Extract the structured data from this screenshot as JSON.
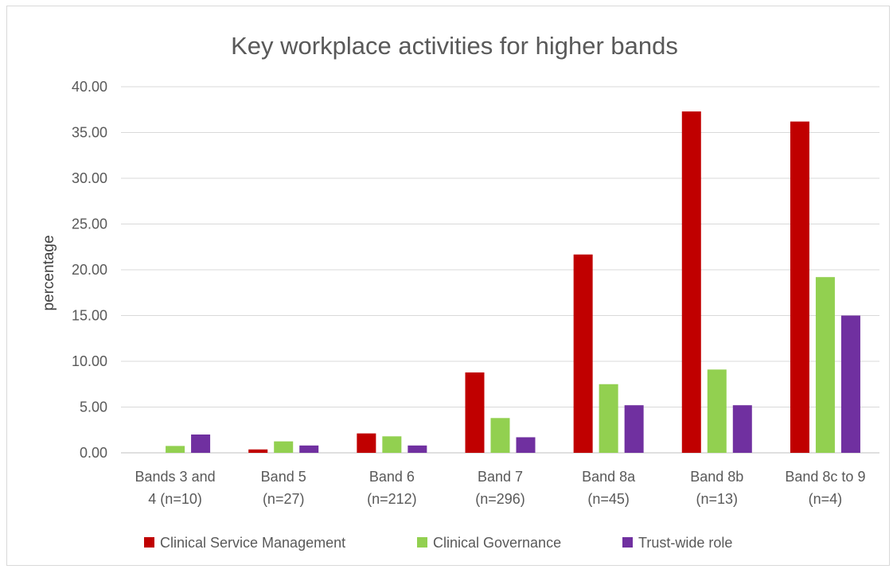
{
  "chart_data": {
    "type": "bar",
    "title": "Key workplace activities for higher bands",
    "xlabel": "",
    "ylabel": "percentage",
    "ylim": [
      0,
      40
    ],
    "yticks": [
      "0.00",
      "5.00",
      "10.00",
      "15.00",
      "20.00",
      "25.00",
      "30.00",
      "35.00",
      "40.00"
    ],
    "grid": true,
    "legend_position": "bottom",
    "categories": [
      [
        "Bands 3 and",
        "4 (n=10)"
      ],
      [
        "Band 5",
        "(n=27)"
      ],
      [
        "Band 6",
        "(n=212)"
      ],
      [
        "Band 7",
        "(n=296)"
      ],
      [
        "Band 8a",
        "(n=45)"
      ],
      [
        "Band 8b",
        "(n=13)"
      ],
      [
        "Band 8c to 9",
        "(n=4)"
      ]
    ],
    "series": [
      {
        "name": "Clinical Service Management",
        "color": "#c00000",
        "values": [
          0.0,
          0.37,
          2.12,
          8.78,
          21.67,
          37.3,
          36.2
        ]
      },
      {
        "name": "Clinical Governance",
        "color": "#92d050",
        "values": [
          0.75,
          1.25,
          1.8,
          3.8,
          7.5,
          9.1,
          19.2
        ]
      },
      {
        "name": "Trust-wide  role",
        "color": "#7030a0",
        "values": [
          2.0,
          0.8,
          0.8,
          1.7,
          5.2,
          5.2,
          15.0
        ]
      }
    ]
  }
}
